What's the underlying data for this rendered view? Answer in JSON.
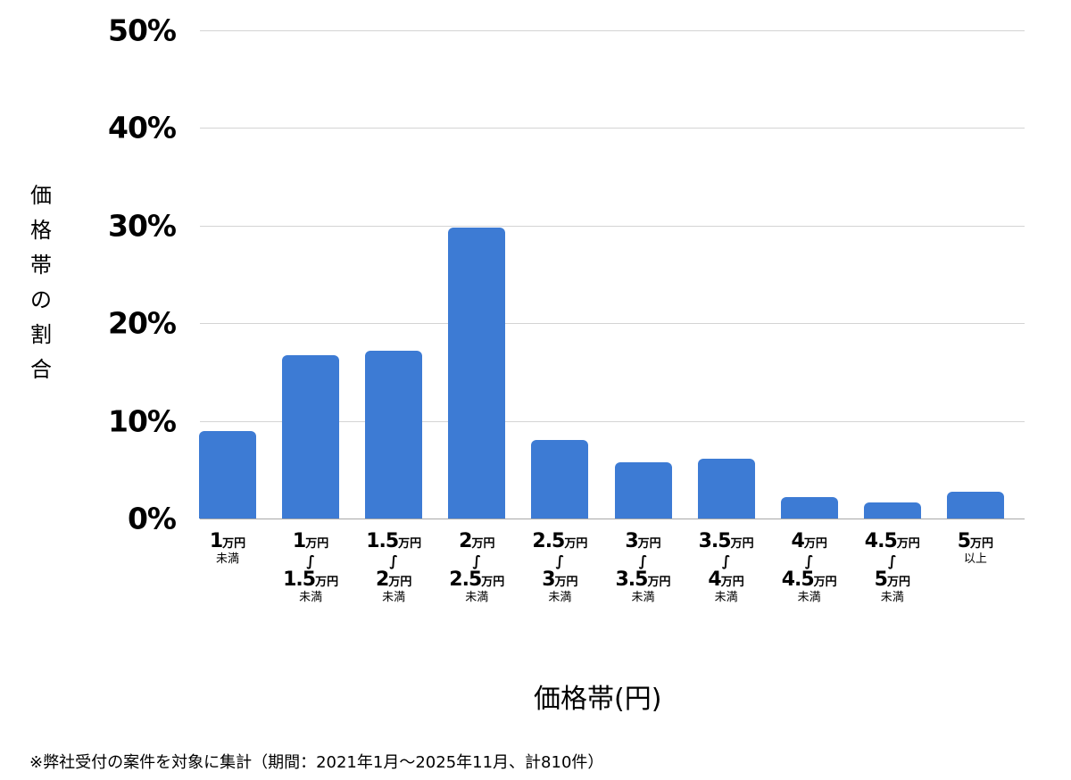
{
  "chart_data": {
    "type": "bar",
    "title": "",
    "xlabel": "価格帯(円)",
    "ylabel": "価格帯の割合",
    "ylim": [
      0,
      50
    ],
    "yticks": [
      "0%",
      "10%",
      "20%",
      "30%",
      "40%",
      "50%"
    ],
    "grid": true,
    "legend": null,
    "bar_color": "#3d7bd4",
    "categories": [
      "1万円未満",
      "1万円〜1.5万円未満",
      "1.5万円〜2万円未満",
      "2万円〜2.5万円未満",
      "2.5万円〜3万円未満",
      "3万円〜3.5万円未満",
      "3.5万円〜4万円未満",
      "4万円〜4.5万円未満",
      "4.5万円〜5万円未満",
      "5万円以上"
    ],
    "values": [
      9.0,
      16.7,
      17.2,
      29.8,
      8.0,
      5.8,
      6.1,
      2.2,
      1.6,
      2.7
    ],
    "unit": "%",
    "footnote": "※弊社受付の案件を対象に集計（期間：2021年1月〜2025年11月、計810件）"
  },
  "axis": {
    "yticks": [
      "0%",
      "10%",
      "20%",
      "30%",
      "40%",
      "50%"
    ],
    "ylabel_chars": [
      "価",
      "格",
      "帯",
      "の",
      "割",
      "合"
    ],
    "xtitle": "価格帯(円)",
    "unit_label": "万円",
    "lt_label": "未満",
    "ge_label": "以上",
    "tilde": "∫"
  },
  "xlabels": [
    {
      "from": "1",
      "to": null,
      "suffix": "未満"
    },
    {
      "from": "1",
      "to": "1.5",
      "suffix": "未満"
    },
    {
      "from": "1.5",
      "to": "2",
      "suffix": "未満"
    },
    {
      "from": "2",
      "to": "2.5",
      "suffix": "未満"
    },
    {
      "from": "2.5",
      "to": "3",
      "suffix": "未満"
    },
    {
      "from": "3",
      "to": "3.5",
      "suffix": "未満"
    },
    {
      "from": "3.5",
      "to": "4",
      "suffix": "未満"
    },
    {
      "from": "4",
      "to": "4.5",
      "suffix": "未満"
    },
    {
      "from": "4.5",
      "to": "5",
      "suffix": "未満"
    },
    {
      "from": "5",
      "to": null,
      "suffix": "以上"
    }
  ],
  "footnote": "※弊社受付の案件を対象に集計（期間：2021年1月〜2025年11月、計810件）"
}
